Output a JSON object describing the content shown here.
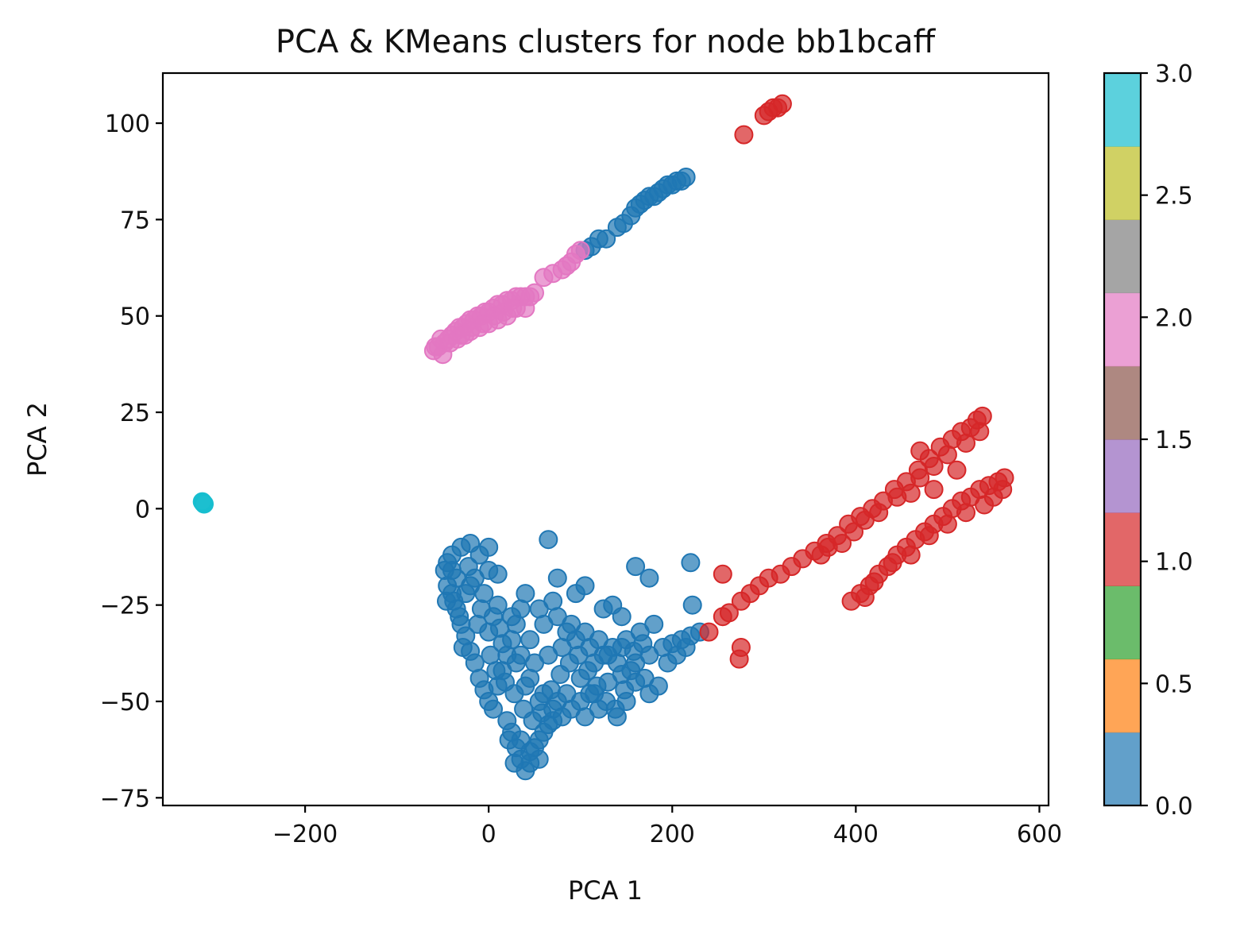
{
  "chart_data": {
    "type": "scatter",
    "title": "PCA & KMeans clusters for node bb1bcaff",
    "xlabel": "PCA 1",
    "ylabel": "PCA 2",
    "xlim": [
      -355,
      610
    ],
    "ylim": [
      -77,
      113
    ],
    "xticks": [
      -200,
      0,
      200,
      400,
      600
    ],
    "yticks": [
      -75,
      -50,
      -25,
      0,
      25,
      50,
      75,
      100
    ],
    "xtick_labels": [
      "−200",
      "0",
      "200",
      "400",
      "600"
    ],
    "ytick_labels": [
      "−75",
      "−50",
      "−25",
      "0",
      "25",
      "50",
      "75",
      "100"
    ],
    "grid": false,
    "colorbar": {
      "range": [
        0,
        3
      ],
      "ticks": [
        0,
        0.5,
        1,
        1.5,
        2,
        2.5,
        3
      ],
      "tick_labels": [
        "0.0",
        "0.5",
        "1.0",
        "1.5",
        "2.0",
        "2.5",
        "3.0"
      ],
      "colormap": "tab10",
      "colors": [
        "#1f77b4",
        "#ff7f0e",
        "#2ca02c",
        "#d62728",
        "#9467bd",
        "#8c564b",
        "#e377c2",
        "#7f7f7f",
        "#bcbd22",
        "#17becf"
      ]
    },
    "series": [
      {
        "cluster": 0,
        "color": "#1f77b4",
        "points": [
          [
            -45,
            -14
          ],
          [
            -40,
            -12
          ],
          [
            -30,
            -10
          ],
          [
            -20,
            -9
          ],
          [
            -10,
            -12
          ],
          [
            0,
            -16
          ],
          [
            10,
            -17
          ],
          [
            -45,
            -20
          ],
          [
            -40,
            -22
          ],
          [
            -35,
            -26
          ],
          [
            -30,
            -30
          ],
          [
            -25,
            -33
          ],
          [
            -20,
            -37
          ],
          [
            -15,
            -40
          ],
          [
            -10,
            -44
          ],
          [
            -5,
            -47
          ],
          [
            0,
            -50
          ],
          [
            5,
            -52
          ],
          [
            10,
            -46
          ],
          [
            15,
            -42
          ],
          [
            20,
            -38
          ],
          [
            25,
            -34
          ],
          [
            30,
            -30
          ],
          [
            35,
            -26
          ],
          [
            40,
            -22
          ],
          [
            -35,
            -18
          ],
          [
            -20,
            -20
          ],
          [
            -5,
            -22
          ],
          [
            10,
            -25
          ],
          [
            25,
            -28
          ],
          [
            0,
            -32
          ],
          [
            15,
            -35
          ],
          [
            30,
            -40
          ],
          [
            45,
            -44
          ],
          [
            60,
            -48
          ],
          [
            75,
            -50
          ],
          [
            90,
            -52
          ],
          [
            105,
            -54
          ],
          [
            20,
            -55
          ],
          [
            25,
            -58
          ],
          [
            30,
            -62
          ],
          [
            35,
            -65
          ],
          [
            40,
            -68
          ],
          [
            45,
            -66
          ],
          [
            50,
            -62
          ],
          [
            55,
            -60
          ],
          [
            60,
            -58
          ],
          [
            65,
            -56
          ],
          [
            70,
            -55
          ],
          [
            80,
            -54
          ],
          [
            100,
            -50
          ],
          [
            115,
            -48
          ],
          [
            130,
            -45
          ],
          [
            145,
            -43
          ],
          [
            160,
            -40
          ],
          [
            175,
            -38
          ],
          [
            190,
            -36
          ],
          [
            200,
            -35
          ],
          [
            210,
            -34
          ],
          [
            220,
            -33
          ],
          [
            230,
            -32
          ],
          [
            50,
            -40
          ],
          [
            65,
            -38
          ],
          [
            80,
            -36
          ],
          [
            95,
            -34
          ],
          [
            110,
            -36
          ],
          [
            125,
            -38
          ],
          [
            140,
            -40
          ],
          [
            155,
            -42
          ],
          [
            170,
            -44
          ],
          [
            185,
            -46
          ],
          [
            60,
            -30
          ],
          [
            75,
            -28
          ],
          [
            90,
            -30
          ],
          [
            105,
            -32
          ],
          [
            120,
            -34
          ],
          [
            135,
            -36
          ],
          [
            150,
            -34
          ],
          [
            165,
            -32
          ],
          [
            180,
            -30
          ],
          [
            40,
            -46
          ],
          [
            55,
            -50
          ],
          [
            70,
            -52
          ],
          [
            85,
            -48
          ],
          [
            100,
            -44
          ],
          [
            115,
            -40
          ],
          [
            130,
            -38
          ],
          [
            145,
            -36
          ],
          [
            160,
            -45
          ],
          [
            175,
            -48
          ],
          [
            -40,
            -16
          ],
          [
            -38,
            -24
          ],
          [
            -32,
            -28
          ],
          [
            -28,
            -36
          ],
          [
            -22,
            -15
          ],
          [
            -15,
            -18
          ],
          [
            -8,
            -26
          ],
          [
            5,
            -28
          ],
          [
            12,
            -31
          ],
          [
            18,
            -45
          ],
          [
            28,
            -48
          ],
          [
            38,
            -52
          ],
          [
            48,
            -55
          ],
          [
            58,
            -53
          ],
          [
            68,
            -47
          ],
          [
            78,
            -43
          ],
          [
            88,
            -40
          ],
          [
            98,
            -38
          ],
          [
            108,
            -42
          ],
          [
            118,
            -46
          ],
          [
            128,
            -50
          ],
          [
            138,
            -52
          ],
          [
            148,
            -47
          ],
          [
            158,
            -37
          ],
          [
            168,
            -35
          ],
          [
            195,
            -40
          ],
          [
            205,
            -38
          ],
          [
            215,
            -36
          ],
          [
            65,
            -8
          ],
          [
            75,
            -18
          ],
          [
            95,
            -22
          ],
          [
            105,
            -20
          ],
          [
            125,
            -26
          ],
          [
            135,
            -25
          ],
          [
            145,
            -28
          ],
          [
            160,
            -15
          ],
          [
            175,
            -18
          ],
          [
            220,
            -14
          ],
          [
            222,
            -25
          ],
          [
            35,
            -60
          ],
          [
            45,
            -63
          ],
          [
            55,
            -65
          ],
          [
            22,
            -60
          ],
          [
            28,
            -66
          ],
          [
            110,
            -48
          ],
          [
            120,
            -52
          ],
          [
            140,
            -54
          ],
          [
            150,
            -50
          ],
          [
            85,
            -32
          ],
          [
            70,
            -24
          ],
          [
            55,
            -26
          ],
          [
            45,
            -34
          ],
          [
            35,
            -38
          ],
          [
            -25,
            -22
          ],
          [
            -12,
            -30
          ],
          [
            2,
            -38
          ],
          [
            8,
            -42
          ],
          [
            0,
            -10
          ],
          [
            -48,
            -16
          ],
          [
            -46,
            -24
          ],
          [
            105,
            67
          ],
          [
            112,
            68
          ],
          [
            120,
            70
          ],
          [
            128,
            70
          ],
          [
            140,
            73
          ],
          [
            147,
            74
          ],
          [
            155,
            76
          ],
          [
            160,
            78
          ],
          [
            165,
            79
          ],
          [
            170,
            80
          ],
          [
            175,
            81
          ],
          [
            180,
            81
          ],
          [
            185,
            82
          ],
          [
            190,
            83
          ],
          [
            195,
            84
          ],
          [
            200,
            84
          ],
          [
            205,
            85
          ],
          [
            210,
            85
          ],
          [
            215,
            86
          ]
        ]
      },
      {
        "cluster": 1,
        "color": "#d62728",
        "points": [
          [
            300,
            102
          ],
          [
            305,
            103
          ],
          [
            310,
            104
          ],
          [
            315,
            104
          ],
          [
            320,
            105
          ],
          [
            278,
            97
          ],
          [
            240,
            -32
          ],
          [
            255,
            -28
          ],
          [
            262,
            -27
          ],
          [
            275,
            -24
          ],
          [
            285,
            -22
          ],
          [
            295,
            -20
          ],
          [
            305,
            -18
          ],
          [
            318,
            -17
          ],
          [
            330,
            -15
          ],
          [
            342,
            -13
          ],
          [
            355,
            -11
          ],
          [
            368,
            -9
          ],
          [
            380,
            -7
          ],
          [
            392,
            -4
          ],
          [
            405,
            -2
          ],
          [
            418,
            0
          ],
          [
            430,
            2
          ],
          [
            442,
            5
          ],
          [
            455,
            7
          ],
          [
            468,
            10
          ],
          [
            480,
            13
          ],
          [
            492,
            16
          ],
          [
            505,
            18
          ],
          [
            515,
            20
          ],
          [
            525,
            21
          ],
          [
            532,
            23
          ],
          [
            538,
            24
          ],
          [
            535,
            20
          ],
          [
            520,
            17
          ],
          [
            500,
            14
          ],
          [
            485,
            11
          ],
          [
            470,
            8
          ],
          [
            460,
            4
          ],
          [
            445,
            3
          ],
          [
            425,
            -1
          ],
          [
            410,
            -3
          ],
          [
            398,
            -6
          ],
          [
            385,
            -9
          ],
          [
            370,
            -10
          ],
          [
            362,
            -12
          ],
          [
            395,
            -24
          ],
          [
            405,
            -22
          ],
          [
            415,
            -20
          ],
          [
            425,
            -17
          ],
          [
            435,
            -15
          ],
          [
            445,
            -12
          ],
          [
            455,
            -10
          ],
          [
            465,
            -8
          ],
          [
            475,
            -6
          ],
          [
            485,
            -4
          ],
          [
            495,
            -2
          ],
          [
            505,
            0
          ],
          [
            515,
            2
          ],
          [
            525,
            3
          ],
          [
            535,
            5
          ],
          [
            545,
            6
          ],
          [
            555,
            7
          ],
          [
            562,
            8
          ],
          [
            560,
            5
          ],
          [
            550,
            3
          ],
          [
            540,
            1
          ],
          [
            520,
            -1
          ],
          [
            500,
            -4
          ],
          [
            480,
            -7
          ],
          [
            460,
            -12
          ],
          [
            440,
            -14
          ],
          [
            420,
            -19
          ],
          [
            410,
            -23
          ],
          [
            275,
            -36
          ],
          [
            273,
            -39
          ],
          [
            255,
            -17
          ],
          [
            470,
            15
          ],
          [
            485,
            5
          ],
          [
            510,
            10
          ]
        ]
      },
      {
        "cluster": 2,
        "color": "#e377c2",
        "points": [
          [
            -60,
            41
          ],
          [
            -55,
            42
          ],
          [
            -50,
            40
          ],
          [
            -48,
            43
          ],
          [
            -44,
            44
          ],
          [
            -40,
            45
          ],
          [
            -36,
            46
          ],
          [
            -32,
            47
          ],
          [
            -28,
            47
          ],
          [
            -24,
            48
          ],
          [
            -20,
            49
          ],
          [
            -16,
            49
          ],
          [
            -12,
            50
          ],
          [
            -8,
            50
          ],
          [
            -4,
            51
          ],
          [
            0,
            51
          ],
          [
            5,
            52
          ],
          [
            10,
            53
          ],
          [
            15,
            53
          ],
          [
            20,
            54
          ],
          [
            25,
            54
          ],
          [
            30,
            55
          ],
          [
            35,
            55
          ],
          [
            40,
            55
          ],
          [
            45,
            55
          ],
          [
            50,
            56
          ],
          [
            -30,
            45
          ],
          [
            -20,
            46
          ],
          [
            -10,
            47
          ],
          [
            0,
            48
          ],
          [
            10,
            49
          ],
          [
            20,
            50
          ],
          [
            30,
            52
          ],
          [
            40,
            52
          ],
          [
            60,
            60
          ],
          [
            70,
            61
          ],
          [
            80,
            62
          ],
          [
            85,
            63
          ],
          [
            90,
            64
          ],
          [
            95,
            66
          ],
          [
            100,
            67
          ],
          [
            -58,
            42
          ],
          [
            -52,
            44
          ],
          [
            -42,
            43
          ],
          [
            -34,
            44
          ],
          [
            -26,
            45
          ],
          [
            -18,
            47
          ],
          [
            -6,
            48
          ],
          [
            6,
            50
          ],
          [
            16,
            51
          ],
          [
            26,
            52
          ]
        ]
      },
      {
        "cluster": 3,
        "color": "#17becf",
        "points": [
          [
            -311,
            1.5
          ],
          [
            -310,
            1.2
          ],
          [
            -312,
            1.8
          ]
        ]
      }
    ]
  }
}
